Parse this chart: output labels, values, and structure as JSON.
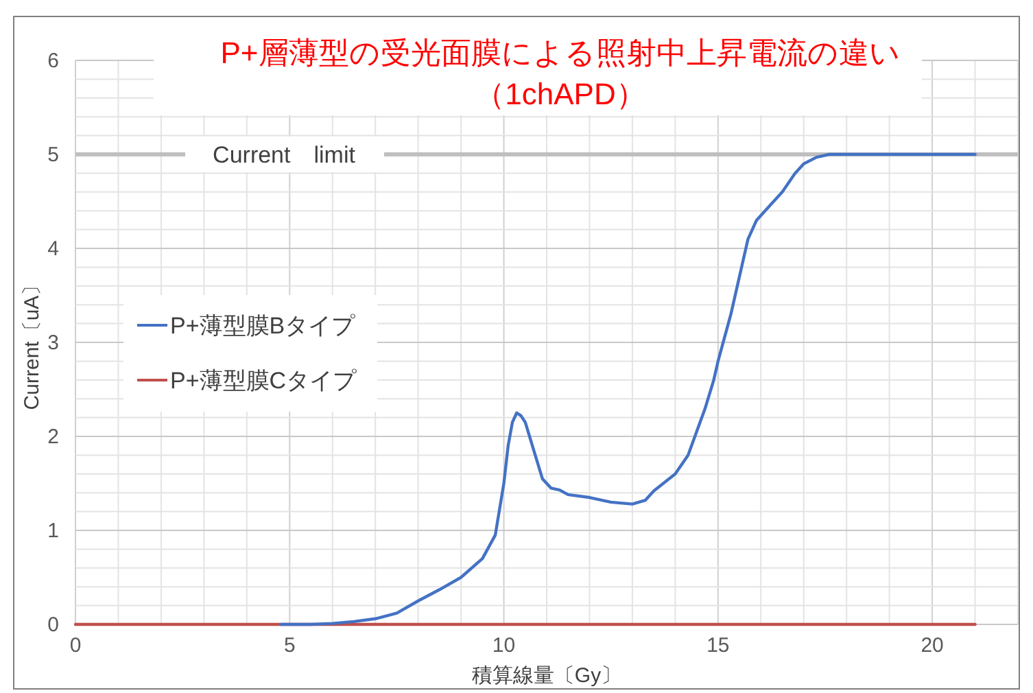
{
  "chart_data": {
    "type": "line",
    "title": "P+層薄型の受光面膜による照射中上昇電流の違い",
    "subtitle": "（1chAPD）",
    "xlabel": "積算線量〔Gy〕",
    "ylabel": "Current〔uA〕",
    "xlim": [
      0,
      22
    ],
    "xticks": [
      0,
      {
        "value": 1,
        "label": null
      },
      {
        "value": 2,
        "label": null
      },
      {
        "value": 3,
        "label": null
      },
      {
        "value": 4,
        "label": null
      },
      5,
      {
        "value": 6,
        "label": null
      },
      {
        "value": 7,
        "label": null
      },
      {
        "value": 8,
        "label": null
      },
      {
        "value": 9,
        "label": null
      },
      10,
      {
        "value": 11,
        "label": null
      },
      {
        "value": 12,
        "label": null
      },
      {
        "value": 13,
        "label": null
      },
      {
        "value": 14,
        "label": null
      },
      15,
      {
        "value": 16,
        "label": null
      },
      {
        "value": 17,
        "label": null
      },
      {
        "value": 18,
        "label": null
      },
      {
        "value": 19,
        "label": null
      },
      20,
      {
        "value": 21,
        "label": null
      },
      {
        "value": 22,
        "label": null
      }
    ],
    "ylim": [
      0,
      6
    ],
    "yticks": [
      0,
      {
        "value": 0.2,
        "label": null
      },
      {
        "value": 0.4,
        "label": null
      },
      {
        "value": 0.6,
        "label": null
      },
      {
        "value": 0.8,
        "label": null
      },
      1,
      {
        "value": 1.2,
        "label": null
      },
      {
        "value": 1.4,
        "label": null
      },
      {
        "value": 1.6,
        "label": null
      },
      {
        "value": 1.8,
        "label": null
      },
      2,
      {
        "value": 2.2,
        "label": null
      },
      {
        "value": 2.4,
        "label": null
      },
      {
        "value": 2.6,
        "label": null
      },
      {
        "value": 2.8,
        "label": null
      },
      3,
      {
        "value": 3.2,
        "label": null
      },
      {
        "value": 3.4,
        "label": null
      },
      {
        "value": 3.6,
        "label": null
      },
      {
        "value": 3.8,
        "label": null
      },
      4,
      {
        "value": 4.2,
        "label": null
      },
      {
        "value": 4.4,
        "label": null
      },
      {
        "value": 4.6,
        "label": null
      },
      {
        "value": 4.8,
        "label": null
      },
      5,
      {
        "value": 5.2,
        "label": null
      },
      {
        "value": 5.4,
        "label": null
      },
      {
        "value": 5.6,
        "label": null
      },
      {
        "value": 5.8,
        "label": null
      },
      6
    ],
    "grid": true,
    "legend": "left",
    "marker": "none",
    "line_style": "solid",
    "ref_lines": [
      {
        "axis": "y",
        "value": 5,
        "label": "Current　limit",
        "color": "#bfbfbf"
      }
    ],
    "series": [
      {
        "name": "P+薄型膜Bタイプ",
        "color": "#4472c4",
        "x": [
          4.8,
          5.5,
          6,
          6.5,
          7,
          7.5,
          8,
          8.5,
          9,
          9.5,
          9.8,
          10,
          10.1,
          10.2,
          10.3,
          10.4,
          10.5,
          10.7,
          10.9,
          11.1,
          11.3,
          11.5,
          12,
          12.5,
          13,
          13.3,
          13.5,
          14,
          14.3,
          14.5,
          14.7,
          14.9,
          15,
          15.3,
          15.5,
          15.7,
          15.9,
          16.2,
          16.5,
          16.8,
          17,
          17.3,
          17.6,
          21
        ],
        "values": [
          0,
          0,
          0.01,
          0.03,
          0.06,
          0.12,
          0.25,
          0.37,
          0.5,
          0.7,
          0.95,
          1.5,
          1.9,
          2.15,
          2.25,
          2.22,
          2.15,
          1.85,
          1.55,
          1.45,
          1.43,
          1.38,
          1.35,
          1.3,
          1.28,
          1.32,
          1.42,
          1.6,
          1.8,
          2.05,
          2.3,
          2.6,
          2.8,
          3.3,
          3.7,
          4.1,
          4.3,
          4.45,
          4.6,
          4.8,
          4.9,
          4.97,
          5,
          5
        ]
      },
      {
        "name": "P+薄型膜Cタイプ",
        "color": "#c0504d",
        "x": [
          0,
          21
        ],
        "values": [
          0,
          0
        ]
      }
    ]
  }
}
